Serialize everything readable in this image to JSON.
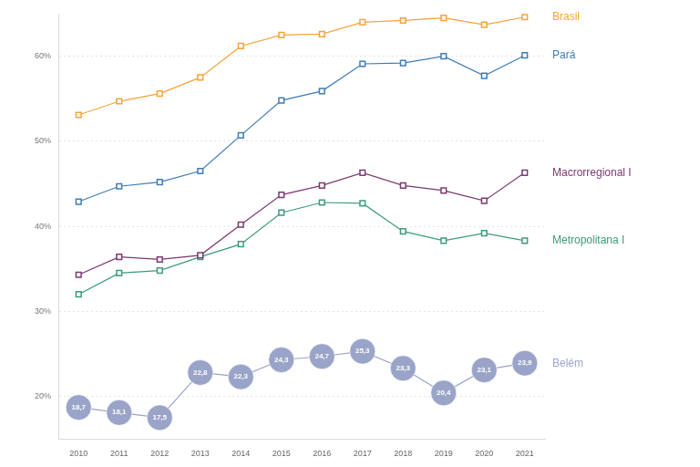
{
  "chart_data": {
    "type": "line",
    "categories": [
      "2010",
      "2011",
      "2012",
      "2013",
      "2014",
      "2015",
      "2016",
      "2017",
      "2018",
      "2019",
      "2020",
      "2021"
    ],
    "series": [
      {
        "name": "Brasil",
        "color": "#f5a33a",
        "marker": "square",
        "values": [
          53.1,
          54.7,
          55.6,
          57.5,
          61.2,
          62.5,
          62.6,
          64.0,
          64.2,
          64.5,
          63.7,
          64.6
        ]
      },
      {
        "name": "Pará",
        "color": "#3f7cb5",
        "marker": "square",
        "values": [
          42.9,
          44.7,
          45.2,
          46.5,
          50.7,
          54.8,
          55.9,
          59.1,
          59.2,
          60.0,
          57.7,
          60.1
        ]
      },
      {
        "name": "Macrorregional I",
        "color": "#7b3a6f",
        "marker": "square",
        "values": [
          34.3,
          36.4,
          36.1,
          36.6,
          40.2,
          43.7,
          44.8,
          46.3,
          44.8,
          44.2,
          43.0,
          46.3
        ]
      },
      {
        "name": "Metropolitana I",
        "color": "#3c9a7c",
        "marker": "square",
        "values": [
          32.0,
          34.5,
          34.8,
          36.4,
          37.9,
          41.6,
          42.8,
          42.7,
          39.4,
          38.3,
          39.2,
          38.3
        ]
      },
      {
        "name": "Belém",
        "color": "#9aa4c8",
        "marker": "circle",
        "data_labels": true,
        "values": [
          18.7,
          18.1,
          17.5,
          22.8,
          22.3,
          24.3,
          24.7,
          25.3,
          23.3,
          20.4,
          23.1,
          23.9
        ],
        "value_labels": [
          "18,7",
          "18,1",
          "17,5",
          "22,8",
          "22,3",
          "24,3",
          "24,7",
          "25,3",
          "23,3",
          "20,4",
          "23,1",
          "23,9"
        ]
      }
    ],
    "ylim": [
      15,
      65
    ],
    "yticks": [
      {
        "value": 20,
        "label": "20%"
      },
      {
        "value": 30,
        "label": "30%"
      },
      {
        "value": 40,
        "label": "40%"
      },
      {
        "value": 50,
        "label": "50%"
      },
      {
        "value": 60,
        "label": "60%"
      }
    ],
    "grid": true,
    "legend": "right"
  }
}
